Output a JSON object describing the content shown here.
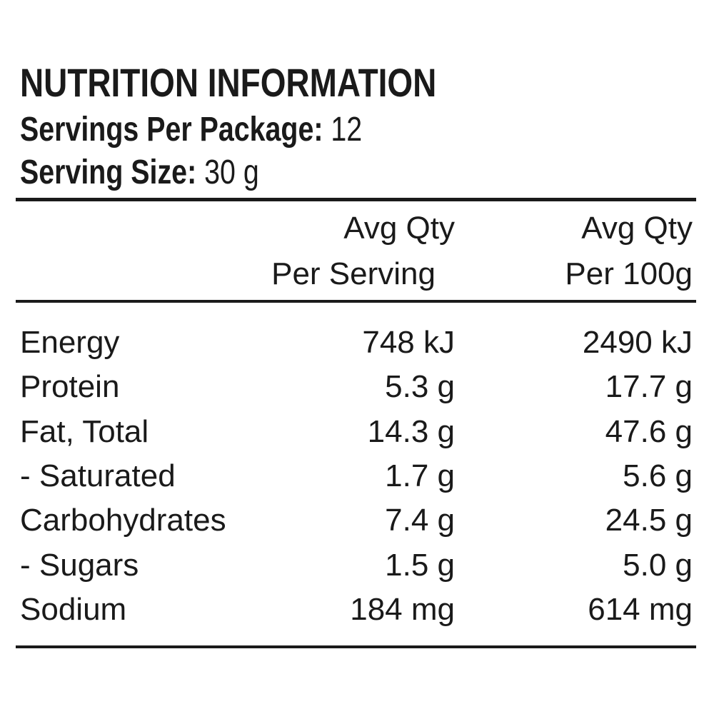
{
  "header": {
    "title": "NUTRITION INFORMATION",
    "servings_label": "Servings Per Package:",
    "servings_value": "12",
    "size_label": "Serving Size:",
    "size_value": "30 g"
  },
  "table": {
    "columns": [
      [
        "Avg Qty",
        "Per Serving"
      ],
      [
        "Avg Qty",
        "Per 100g"
      ]
    ],
    "rows": [
      [
        "Energy",
        "748 kJ",
        "2490 kJ"
      ],
      [
        "Protein",
        "5.3 g",
        "17.7 g"
      ],
      [
        "Fat, Total",
        "14.3 g",
        "47.6 g"
      ],
      [
        "- Saturated",
        "1.7 g",
        "5.6 g"
      ],
      [
        "Carbohydrates",
        "7.4 g",
        "24.5 g"
      ],
      [
        "- Sugars",
        "1.5 g",
        "5.0 g"
      ],
      [
        "Sodium",
        "184 mg",
        "614 mg"
      ]
    ]
  }
}
